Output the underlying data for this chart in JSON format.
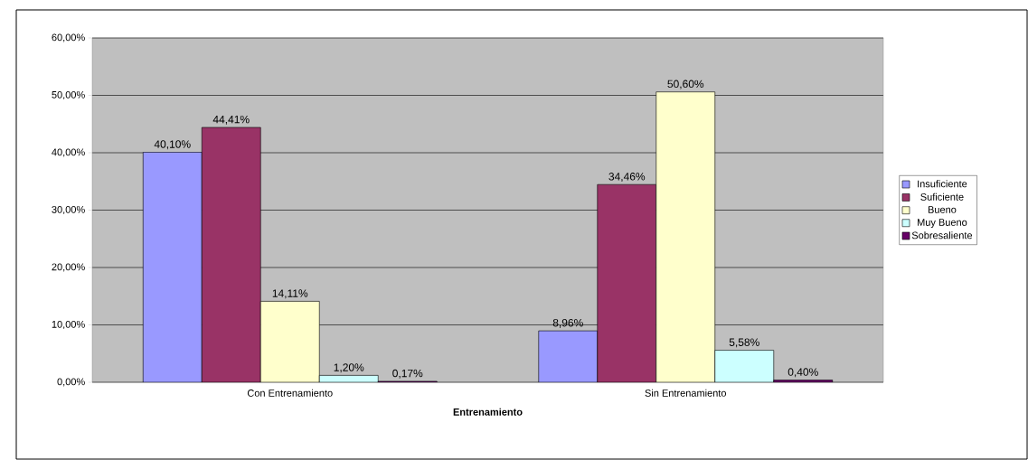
{
  "chart_data": {
    "type": "bar",
    "xlabel": "Entrenamiento",
    "categories": [
      "Con Entrenamiento",
      "Sin Entrenamiento"
    ],
    "series": [
      {
        "name": "Insuficiente",
        "color": "#9999ff",
        "values": [
          40.1,
          8.96
        ],
        "value_labels": [
          "40,10%",
          "8,96%"
        ]
      },
      {
        "name": "Suficiente",
        "color": "#993366",
        "values": [
          44.41,
          34.46
        ],
        "value_labels": [
          "44,41%",
          "34,46%"
        ]
      },
      {
        "name": "Bueno",
        "color": "#ffffcc",
        "values": [
          14.11,
          50.6
        ],
        "value_labels": [
          "14,11%",
          "50,60%"
        ]
      },
      {
        "name": "Muy Bueno",
        "color": "#ccffff",
        "values": [
          1.2,
          5.58
        ],
        "value_labels": [
          "1,20%",
          "5,58%"
        ]
      },
      {
        "name": "Sobresaliente",
        "color": "#660066",
        "values": [
          0.17,
          0.4
        ],
        "value_labels": [
          "0,17%",
          "0,40%"
        ]
      }
    ],
    "ylim": [
      0,
      60
    ],
    "yticks": [
      {
        "value": 0,
        "label": "0,00%"
      },
      {
        "value": 10,
        "label": "10,00%"
      },
      {
        "value": 20,
        "label": "20,00%"
      },
      {
        "value": 30,
        "label": "30,00%"
      },
      {
        "value": 40,
        "label": "40,00%"
      },
      {
        "value": 50,
        "label": "50,00%"
      },
      {
        "value": 60,
        "label": "60,00%"
      }
    ],
    "grid": "y",
    "legend": "right"
  }
}
